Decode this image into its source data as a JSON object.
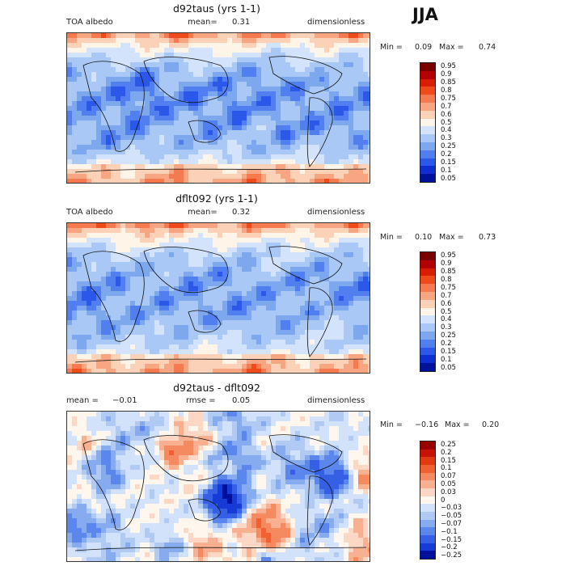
{
  "season": "JJA",
  "panels": [
    {
      "title": "d92taus (yrs 1-1)",
      "left_label": "TOA albedo",
      "mean_label": "mean=",
      "mean_value": "0.31",
      "right_label": "dimensionless",
      "min_label": "Min =",
      "min_value": "0.09",
      "max_label": "Max =",
      "max_value": "0.74",
      "kind": "abs",
      "colorbar": [
        "0.95",
        "0.9",
        "0.85",
        "0.8",
        "0.75",
        "0.7",
        "0.6",
        "0.5",
        "0.4",
        "0.3",
        "0.25",
        "0.2",
        "0.15",
        "0.1",
        "0.05"
      ]
    },
    {
      "title": "dflt092 (yrs 1-1)",
      "left_label": "TOA albedo",
      "mean_label": "mean=",
      "mean_value": "0.32",
      "right_label": "dimensionless",
      "min_label": "Min =",
      "min_value": "0.10",
      "max_label": "Max =",
      "max_value": "0.73",
      "kind": "abs",
      "colorbar": [
        "0.95",
        "0.9",
        "0.85",
        "0.8",
        "0.75",
        "0.7",
        "0.6",
        "0.5",
        "0.4",
        "0.3",
        "0.25",
        "0.2",
        "0.15",
        "0.1",
        "0.05"
      ]
    },
    {
      "title": "d92taus - dflt092",
      "left_label": "mean =",
      "mean_label": "rmse =",
      "left_value": "−0.01",
      "mean_value": "0.05",
      "right_label": "dimensionless",
      "min_label": "Min =",
      "min_value": "−0.16",
      "max_label": "Max =",
      "max_value": "0.20",
      "kind": "diff",
      "colorbar": [
        "0.25",
        "0.2",
        "0.15",
        "0.1",
        "0.07",
        "0.05",
        "0.03",
        "0",
        "−0.03",
        "−0.05",
        "−0.07",
        "−0.1",
        "−0.15",
        "−0.2",
        "−0.25"
      ]
    }
  ],
  "colors": {
    "abs": [
      "#7a0000",
      "#b20000",
      "#d91e00",
      "#ef4a1a",
      "#f57a50",
      "#f8a581",
      "#fbd2b7",
      "#fff4e8",
      "#d3e3fb",
      "#aac8f5",
      "#7ea8ee",
      "#517ff0",
      "#2b58e8",
      "#0f2fd0",
      "#00129a"
    ],
    "diff": [
      "#9a0000",
      "#c71400",
      "#e23a10",
      "#f06030",
      "#f58a60",
      "#f9b090",
      "#fcd8c4",
      "#fff6ee",
      "#d3e2fb",
      "#b0caf4",
      "#86abee",
      "#5b86ec",
      "#3560e6",
      "#163bd6",
      "#000f9c"
    ]
  }
}
